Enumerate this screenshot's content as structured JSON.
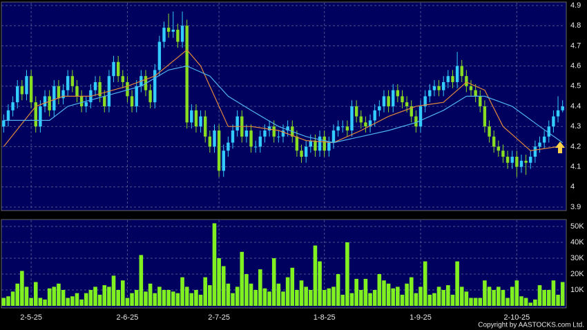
{
  "chart_data": [
    {
      "type": "candlestick",
      "xlim": [
        -0.5,
        122.5
      ],
      "ylim": [
        3.9,
        4.9
      ],
      "yticks": [
        3.9,
        4,
        4.1,
        4.2,
        4.3,
        4.4,
        4.5,
        4.6,
        4.7,
        4.8,
        4.9
      ],
      "grid": true,
      "up_color": "#33ccff",
      "down_color": "#88dd22",
      "open": [
        4.3,
        4.33,
        4.38,
        4.42,
        4.5,
        4.46,
        4.55,
        4.42,
        4.3,
        4.4,
        4.45,
        4.38,
        4.5,
        4.44,
        4.48,
        4.55,
        4.5,
        4.45,
        4.4,
        4.42,
        4.48,
        4.52,
        4.45,
        4.4,
        4.55,
        4.62,
        4.55,
        4.52,
        4.45,
        4.4,
        4.5,
        4.55,
        4.48,
        4.42,
        4.58,
        4.72,
        4.79,
        4.77,
        4.78,
        4.72,
        4.8,
        4.32,
        4.38,
        4.3,
        4.35,
        4.25,
        4.2,
        4.28,
        4.08,
        4.18,
        4.22,
        4.28,
        4.35,
        4.25,
        4.28,
        4.2,
        4.2,
        4.25,
        4.28,
        4.3,
        4.25,
        4.25,
        4.28,
        4.3,
        4.25,
        4.18,
        4.15,
        4.2,
        4.23,
        4.18,
        4.25,
        4.18,
        4.22,
        4.28,
        4.3,
        4.3,
        4.28,
        4.4,
        4.35,
        4.32,
        4.3,
        4.33,
        4.38,
        4.4,
        4.45,
        4.4,
        4.48,
        4.45,
        4.42,
        4.4,
        4.35,
        4.3,
        4.4,
        4.45,
        4.48,
        4.5,
        4.48,
        4.52,
        4.55,
        4.52,
        4.6,
        4.55,
        4.5,
        4.48,
        4.45,
        4.4,
        4.3,
        4.25,
        4.2,
        4.18,
        4.15,
        4.12,
        4.15,
        4.1,
        4.13,
        4.12,
        4.15,
        4.2,
        4.22,
        4.25,
        4.3,
        4.35,
        4.38
      ],
      "high": [
        4.36,
        4.41,
        4.45,
        4.53,
        4.53,
        4.58,
        4.58,
        4.45,
        4.43,
        4.48,
        4.48,
        4.53,
        4.53,
        4.51,
        4.58,
        4.58,
        4.53,
        4.48,
        4.45,
        4.51,
        4.55,
        4.55,
        4.48,
        4.58,
        4.65,
        4.65,
        4.58,
        4.55,
        4.48,
        4.53,
        4.58,
        4.58,
        4.51,
        4.61,
        4.75,
        4.82,
        4.86,
        4.87,
        4.81,
        4.87,
        4.83,
        4.41,
        4.41,
        4.38,
        4.38,
        4.28,
        4.31,
        4.31,
        4.21,
        4.25,
        4.31,
        4.38,
        4.38,
        4.31,
        4.31,
        4.23,
        4.28,
        4.31,
        4.33,
        4.33,
        4.28,
        4.31,
        4.33,
        4.33,
        4.28,
        4.21,
        4.23,
        4.26,
        4.26,
        4.28,
        4.28,
        4.25,
        4.31,
        4.33,
        4.33,
        4.33,
        4.43,
        4.43,
        4.38,
        4.35,
        4.36,
        4.41,
        4.43,
        4.48,
        4.48,
        4.51,
        4.51,
        4.48,
        4.45,
        4.43,
        4.38,
        4.43,
        4.48,
        4.51,
        4.53,
        4.53,
        4.55,
        4.58,
        4.58,
        4.67,
        4.63,
        4.58,
        4.53,
        4.51,
        4.48,
        4.43,
        4.33,
        4.28,
        4.23,
        4.21,
        4.18,
        4.18,
        4.18,
        4.16,
        4.16,
        4.18,
        4.23,
        4.25,
        4.28,
        4.33,
        4.38,
        4.45,
        4.43
      ],
      "low": [
        4.27,
        4.3,
        4.35,
        4.39,
        4.43,
        4.43,
        4.39,
        4.27,
        4.27,
        4.37,
        4.35,
        4.35,
        4.41,
        4.41,
        4.45,
        4.47,
        4.42,
        4.37,
        4.37,
        4.39,
        4.45,
        4.42,
        4.37,
        4.37,
        4.52,
        4.52,
        4.49,
        4.42,
        4.37,
        4.37,
        4.47,
        4.45,
        4.39,
        4.39,
        4.55,
        4.69,
        4.74,
        4.74,
        4.69,
        4.69,
        4.29,
        4.29,
        4.27,
        4.27,
        4.22,
        4.17,
        4.17,
        4.05,
        4.05,
        4.15,
        4.19,
        4.25,
        4.22,
        4.22,
        4.17,
        4.17,
        4.17,
        4.22,
        4.25,
        4.22,
        4.22,
        4.22,
        4.25,
        4.22,
        4.15,
        4.12,
        4.12,
        4.17,
        4.15,
        4.15,
        4.15,
        4.15,
        4.19,
        4.25,
        4.27,
        4.25,
        4.25,
        4.32,
        4.29,
        4.27,
        4.27,
        4.3,
        4.35,
        4.37,
        4.37,
        4.37,
        4.42,
        4.39,
        4.37,
        4.32,
        4.27,
        4.27,
        4.37,
        4.42,
        4.45,
        4.45,
        4.45,
        4.49,
        4.49,
        4.49,
        4.52,
        4.47,
        4.45,
        4.42,
        4.37,
        4.27,
        4.22,
        4.17,
        4.15,
        4.12,
        4.09,
        4.09,
        4.05,
        4.07,
        4.06,
        4.09,
        4.12,
        4.17,
        4.19,
        4.22,
        4.27,
        4.32,
        4.37
      ],
      "close": [
        4.33,
        4.38,
        4.42,
        4.5,
        4.46,
        4.55,
        4.42,
        4.3,
        4.4,
        4.45,
        4.38,
        4.5,
        4.44,
        4.48,
        4.55,
        4.5,
        4.45,
        4.4,
        4.42,
        4.48,
        4.52,
        4.45,
        4.4,
        4.55,
        4.62,
        4.55,
        4.52,
        4.45,
        4.4,
        4.5,
        4.55,
        4.48,
        4.42,
        4.58,
        4.72,
        4.79,
        4.77,
        4.78,
        4.72,
        4.8,
        4.32,
        4.38,
        4.3,
        4.35,
        4.25,
        4.2,
        4.28,
        4.08,
        4.18,
        4.22,
        4.28,
        4.35,
        4.25,
        4.28,
        4.2,
        4.2,
        4.25,
        4.28,
        4.3,
        4.25,
        4.25,
        4.28,
        4.3,
        4.25,
        4.18,
        4.15,
        4.2,
        4.23,
        4.18,
        4.25,
        4.18,
        4.22,
        4.28,
        4.3,
        4.3,
        4.28,
        4.4,
        4.35,
        4.32,
        4.3,
        4.33,
        4.38,
        4.4,
        4.45,
        4.4,
        4.48,
        4.45,
        4.42,
        4.4,
        4.35,
        4.3,
        4.4,
        4.45,
        4.48,
        4.5,
        4.48,
        4.52,
        4.55,
        4.52,
        4.6,
        4.55,
        4.5,
        4.48,
        4.45,
        4.4,
        4.3,
        4.25,
        4.2,
        4.18,
        4.15,
        4.12,
        4.15,
        4.1,
        4.13,
        4.12,
        4.15,
        4.2,
        4.22,
        4.25,
        4.3,
        4.35,
        4.38,
        4.4
      ],
      "lines": [
        {
          "color": "#e08a3c",
          "x": [
            0,
            7,
            13,
            19,
            27,
            33,
            40,
            43,
            46,
            49,
            54,
            60,
            66,
            72,
            78,
            84,
            90,
            96,
            101,
            105,
            109,
            115,
            121
          ],
          "values": [
            4.2,
            4.4,
            4.45,
            4.45,
            4.5,
            4.55,
            4.68,
            4.6,
            4.45,
            4.3,
            4.3,
            4.28,
            4.23,
            4.22,
            4.28,
            4.35,
            4.4,
            4.42,
            4.52,
            4.48,
            4.3,
            4.18,
            4.2
          ]
        },
        {
          "color": "#4fb4f0",
          "x": [
            0,
            10,
            14,
            22,
            30,
            36,
            40,
            45,
            49,
            54,
            60,
            66,
            72,
            78,
            84,
            90,
            96,
            101,
            105,
            111,
            117,
            122
          ],
          "values": [
            4.33,
            4.33,
            4.4,
            4.45,
            4.5,
            4.58,
            4.6,
            4.55,
            4.45,
            4.38,
            4.3,
            4.25,
            4.22,
            4.25,
            4.28,
            4.32,
            4.38,
            4.45,
            4.45,
            4.4,
            4.3,
            4.22
          ]
        }
      ]
    },
    {
      "type": "bar",
      "xlim": [
        -0.5,
        122.5
      ],
      "xticks": [
        {
          "value": 6,
          "label": "2-5-25"
        },
        {
          "value": 27,
          "label": "2-6-25"
        },
        {
          "value": 47,
          "label": "2-7-25"
        },
        {
          "value": 70,
          "label": "1-8-25"
        },
        {
          "value": 91,
          "label": "1-9-25"
        },
        {
          "value": 112,
          "label": "2-10-25"
        }
      ],
      "ylim": [
        0,
        50000
      ],
      "yticks": [
        {
          "value": 10000,
          "label": "10K"
        },
        {
          "value": 20000,
          "label": "20K"
        },
        {
          "value": 30000,
          "label": "30K"
        },
        {
          "value": 40000,
          "label": "40K"
        },
        {
          "value": 50000,
          "label": "50K"
        }
      ],
      "grid": true,
      "color": "#80f020",
      "values": [
        5000,
        6000,
        9000,
        14000,
        22000,
        12000,
        5000,
        15000,
        5000,
        4000,
        11000,
        12000,
        14000,
        10000,
        5000,
        6000,
        8000,
        4000,
        8000,
        10000,
        12000,
        7000,
        13000,
        12000,
        19000,
        10000,
        16000,
        5000,
        8000,
        10000,
        32000,
        9000,
        14000,
        8000,
        12000,
        10000,
        10000,
        9000,
        8000,
        18000,
        12000,
        8000,
        10000,
        7000,
        18000,
        13000,
        52000,
        30000,
        25000,
        14000,
        8000,
        12000,
        34000,
        20000,
        14000,
        10000,
        23000,
        11000,
        9000,
        30000,
        14000,
        9000,
        18000,
        24000,
        10000,
        16000,
        12000,
        10000,
        38000,
        28000,
        10000,
        11000,
        12000,
        20000,
        7000,
        40000,
        8000,
        17000,
        10000,
        17000,
        8000,
        10000,
        20000,
        16000,
        14000,
        11000,
        12000,
        7000,
        14000,
        18000,
        8000,
        12000,
        28000,
        7000,
        8000,
        12000,
        10000,
        13000,
        7000,
        28000,
        12000,
        9000,
        5000,
        5000,
        5000,
        16000,
        12000,
        10000,
        12000,
        10000,
        5000,
        12000,
        16000,
        6000,
        5000,
        2000,
        4000,
        13000,
        10000,
        10000,
        16000,
        7000,
        15000
      ]
    }
  ],
  "footer": "Copyright by AASTOCKS.com Ltd."
}
